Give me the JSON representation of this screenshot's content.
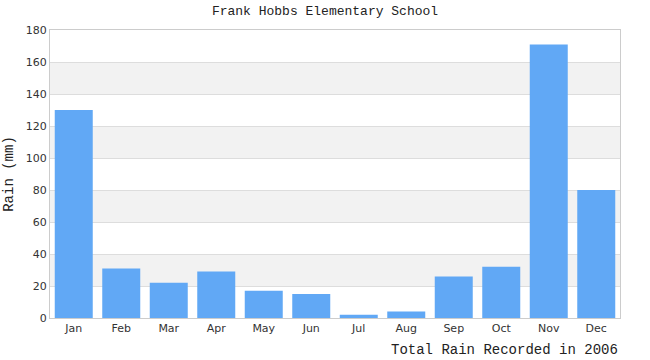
{
  "chart_data": {
    "type": "bar",
    "title": "Frank Hobbs Elementary School",
    "x_label": "Total Rain Recorded in 2006",
    "y_label": "Rain (mm)",
    "categories": [
      "Jan",
      "Feb",
      "Mar",
      "Apr",
      "May",
      "Jun",
      "Jul",
      "Aug",
      "Sep",
      "Oct",
      "Nov",
      "Dec"
    ],
    "values": [
      130,
      31,
      22,
      29,
      17,
      15,
      2,
      4,
      26,
      32,
      171,
      80
    ],
    "color": "#61a8f5",
    "ylim": [
      0,
      180
    ],
    "yticks": [
      0,
      20,
      40,
      60,
      80,
      100,
      120,
      140,
      160,
      180
    ],
    "grid": true
  }
}
